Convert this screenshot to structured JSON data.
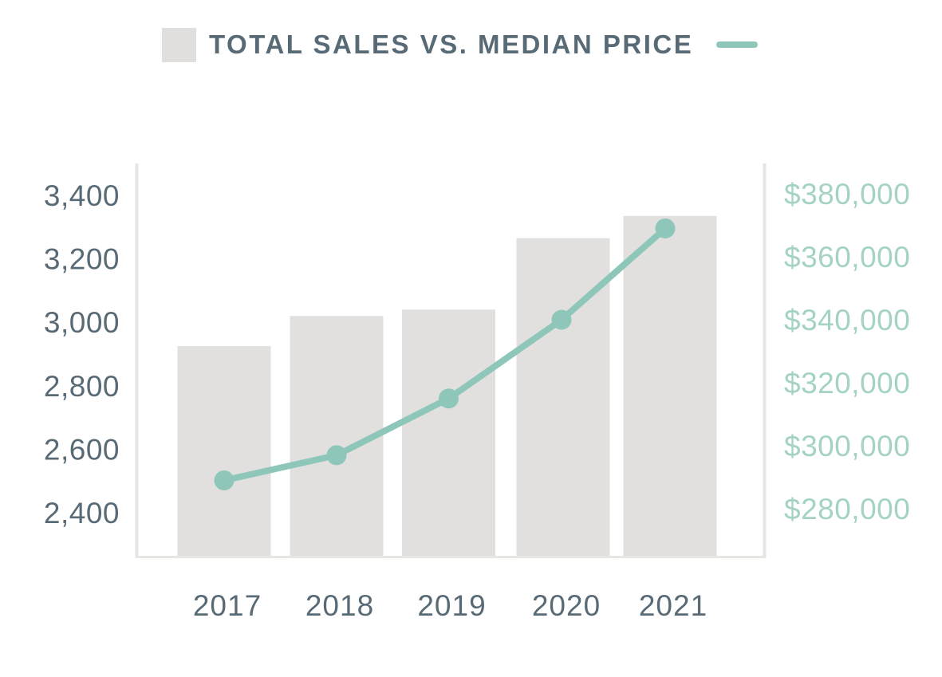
{
  "header": {
    "legend_note": "bar swatch + title + line swatch"
  },
  "colors": {
    "bar_fill": "#e1e0de",
    "line_teal": "#8ec7b9",
    "right_label_teal": "#a4d2c5",
    "slate_text": "#586a75",
    "axis_line": "#e7e6e3",
    "legend_bar_swatch": "#e0dfdd",
    "background": "#ffffff"
  },
  "chart_data": {
    "type": "combo_bar_line",
    "title": "TOTAL SALES VS. MEDIAN PRICE",
    "legend_position": "top",
    "grid": false,
    "categories": [
      "2017",
      "2018",
      "2019",
      "2020",
      "2021"
    ],
    "series": [
      {
        "name": "Total Sales",
        "type": "bar",
        "axis": "left",
        "values": [
          2925,
          3020,
          3040,
          3265,
          3335
        ]
      },
      {
        "name": "Median Price",
        "type": "line",
        "axis": "right",
        "values": [
          289000,
          297000,
          315000,
          340000,
          369000
        ]
      }
    ],
    "left_axis": {
      "tick_values": [
        3400,
        3200,
        3000,
        2800,
        2600,
        2400
      ],
      "tick_labels": [
        "3,400",
        "3,200",
        "3,000",
        "2,800",
        "2,600",
        "2,400"
      ],
      "approx_min_at_baseline": 2260,
      "max": 3400
    },
    "right_axis": {
      "tick_values": [
        380000,
        360000,
        340000,
        320000,
        300000,
        280000
      ],
      "tick_labels": [
        "$380,000",
        "$360,000",
        "$340,000",
        "$320,000",
        "$300,000",
        "$280,000"
      ]
    }
  }
}
